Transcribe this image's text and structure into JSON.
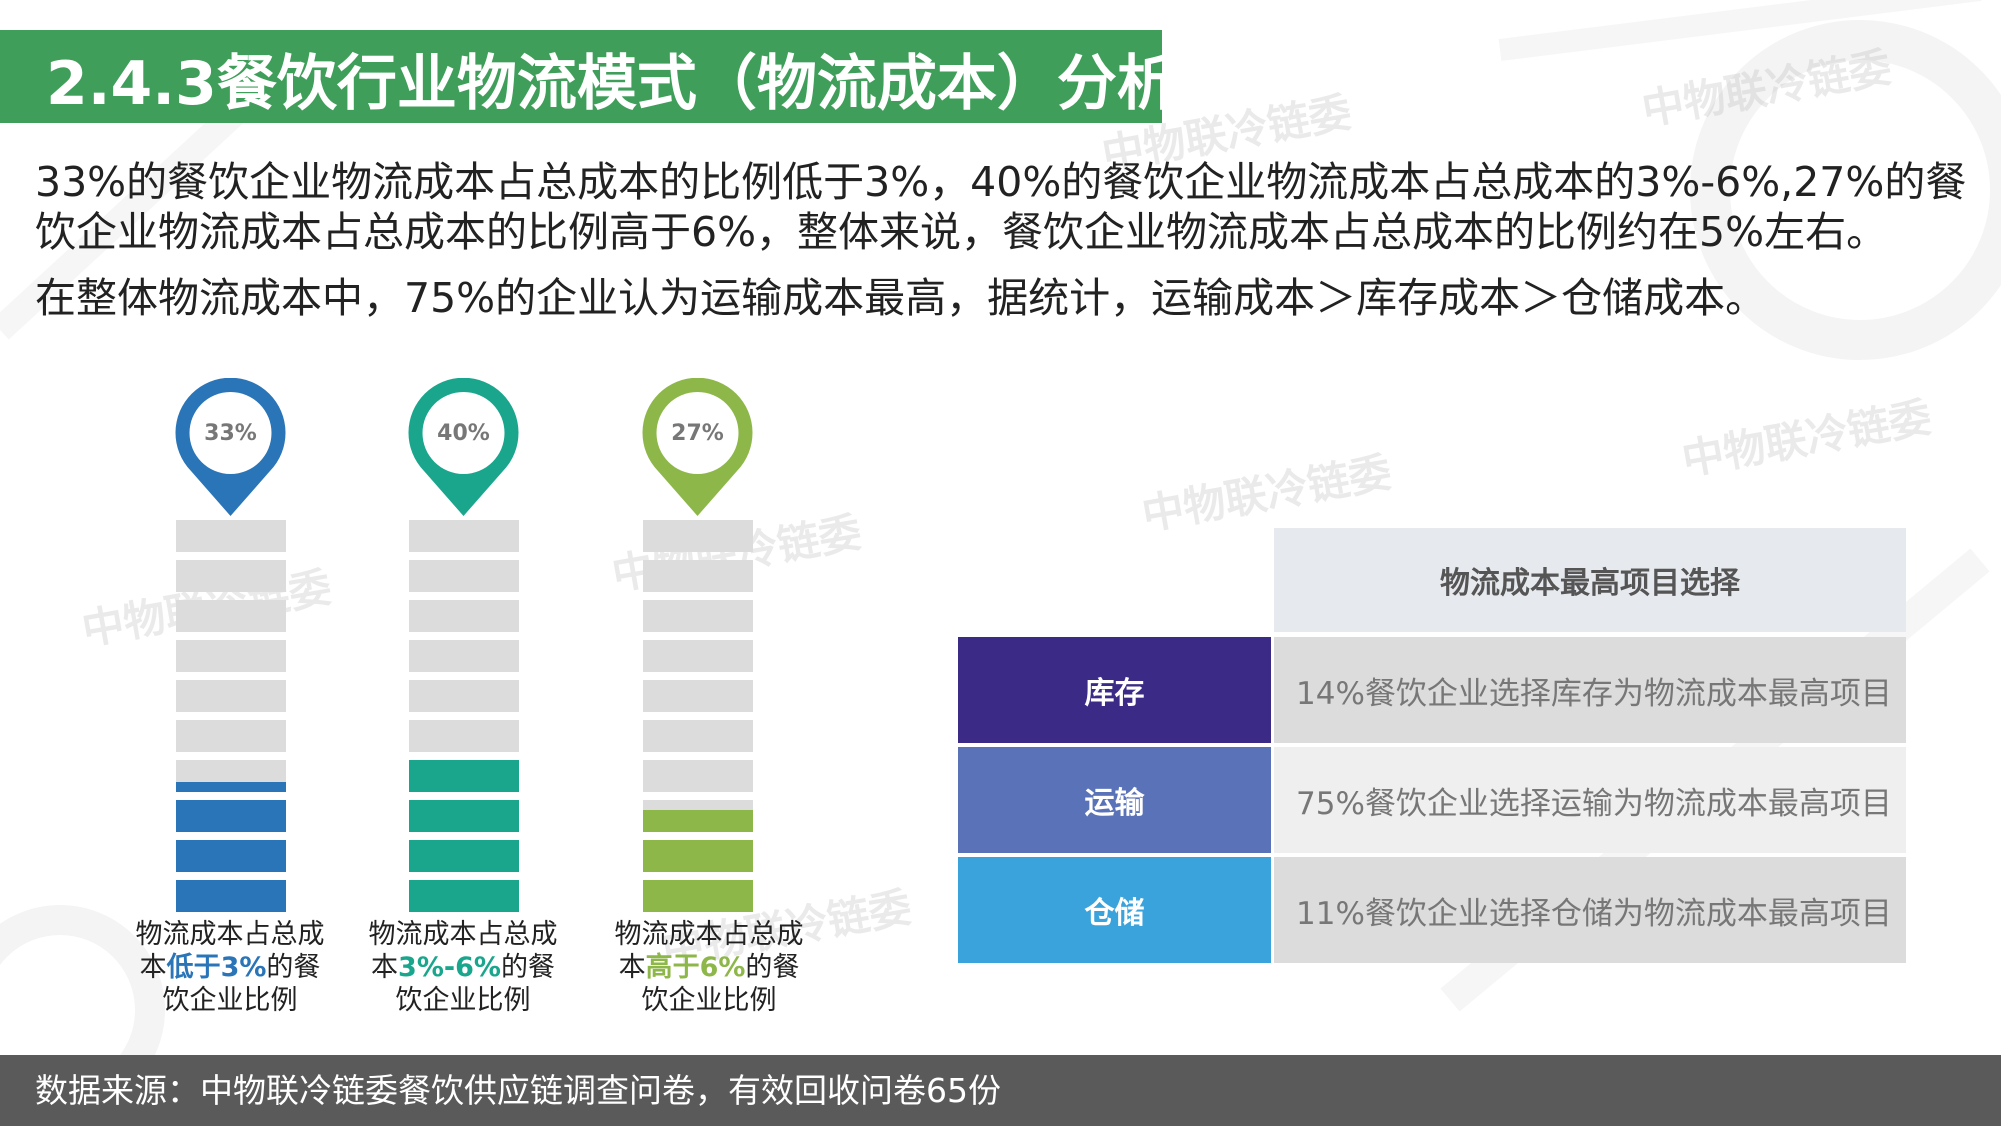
{
  "header": {
    "title": "2.4.3餐饮行业物流模式（物流成本）分析"
  },
  "watermark_text": "中物联冷链委",
  "intro": {
    "line1": "33%的餐饮企业物流成本占总成本的比例低于3%，40%的餐饮企业物流成本占总成本的3%-6%,27%的餐",
    "line2": "饮企业物流成本占总成本的比例高于6%，整体来说，餐饮企业物流成本占总成本的比例约在5%左右。",
    "line3": "在整体物流成本中，75%的企业认为运输成本最高，据统计，运输成本＞库存成本＞仓储成本。"
  },
  "bars": [
    {
      "percent_label": "33%",
      "value": 33,
      "color": "#2a74b8",
      "caption_line1": "物流成本占总成",
      "caption_pre": "本",
      "caption_hl": "低于3%",
      "caption_post": "的餐",
      "caption_line3": "饮企业比例"
    },
    {
      "percent_label": "40%",
      "value": 40,
      "color": "#1aa68d",
      "caption_line1": "物流成本占总成",
      "caption_pre": "本",
      "caption_hl": "3%-6%",
      "caption_post": "的餐",
      "caption_line3": "饮企业比例"
    },
    {
      "percent_label": "27%",
      "value": 27,
      "color": "#8eb74a",
      "caption_line1": "物流成本占总成",
      "caption_pre": "本",
      "caption_hl": "高于6%",
      "caption_post": "的餐",
      "caption_line3": "饮企业比例"
    }
  ],
  "table": {
    "header": "物流成本最高项目选择",
    "rows": [
      {
        "key": "库存",
        "value": "14%餐饮企业选择库存为物流成本最高项目",
        "color": "#3b2a86"
      },
      {
        "key": "运输",
        "value": "75%餐饮企业选择运输为物流成本最高项目",
        "color": "#5a73b8"
      },
      {
        "key": "仓储",
        "value": "11%餐饮企业选择仓储为物流成本最高项目",
        "color": "#3ba3dc"
      }
    ]
  },
  "footer": {
    "source": "数据来源：中物联冷链委餐饮供应链调查问卷，有效回收问卷65份"
  },
  "colors": {
    "title_bar": "#3f9e5a",
    "footer": "#5a5a5a",
    "segment_gray": "#dcdcdc"
  }
}
